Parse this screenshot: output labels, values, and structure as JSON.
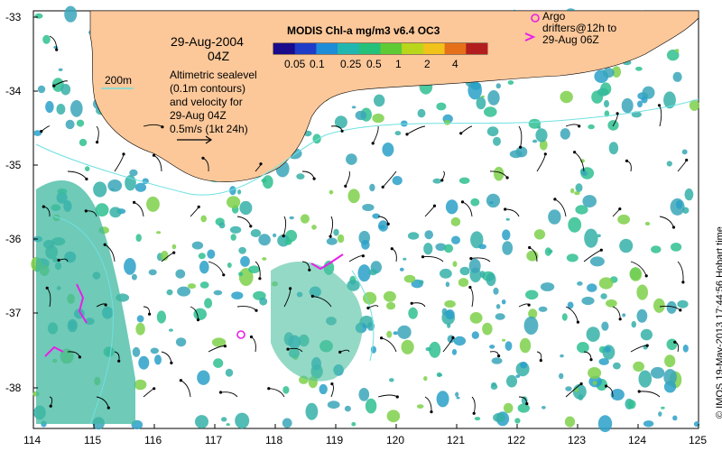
{
  "map": {
    "title": "MODIS Chl-a mg/m3 v6.4 OC3",
    "colorbar_ticks": [
      "0.05",
      "0.1",
      "0.25",
      "0.5",
      "1",
      "2",
      "4"
    ],
    "colorbar_colors": [
      "#1a0a8c",
      "#1f3cc8",
      "#1f8cd8",
      "#22b6b0",
      "#25c07a",
      "#5ecb35",
      "#b9d61b",
      "#f0c21a",
      "#e6701a",
      "#b21e1e"
    ],
    "date": "29-Aug-2004",
    "time": "04Z",
    "depth_label": "200m",
    "altimetry_text": [
      "Altimetric sealevel",
      "(0.1m contours)",
      "and velocity for",
      "29-Aug 04Z",
      "0.5m/s (1kt 24h)"
    ],
    "argo_text": [
      "Argo",
      "drifters@12h to",
      "29-Aug 06Z"
    ],
    "credit": "© IMOS 19-May-2013 17:44:56 Hobart time",
    "x_axis_ticks": [
      "114",
      "115",
      "116",
      "117",
      "118",
      "119",
      "120",
      "121",
      "122",
      "123",
      "124",
      "125"
    ],
    "y_axis_ticks": [
      "-33",
      "-34",
      "-35",
      "-36",
      "-37",
      "-38"
    ],
    "colors": {
      "land": "#fcc89a",
      "chl_low": "#3aa6b8",
      "chl_mid": "#2fbf90",
      "chl_high": "#7ed04a",
      "contour": "#6fe0e0",
      "argo": "#e81ee8"
    }
  }
}
